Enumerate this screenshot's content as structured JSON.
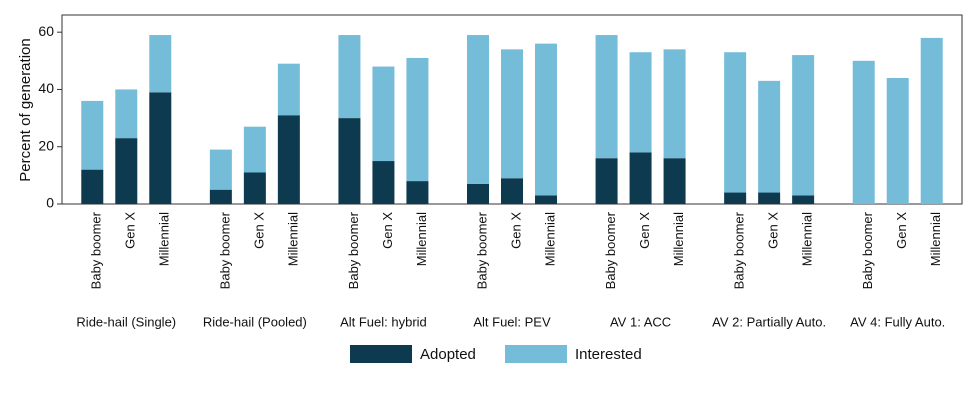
{
  "chart_data": {
    "type": "stacked_bar",
    "y_label": "Percent of generation",
    "groups": [
      "Ride-hail (Single)",
      "Ride-hail (Pooled)",
      "Alt Fuel: hybrid",
      "Alt Fuel: PEV",
      "AV 1: ACC",
      "AV 2: Partially Auto.",
      "AV 4: Fully Auto."
    ],
    "categories": [
      "Baby boomer",
      "Gen X",
      "Millennial",
      "Baby boomer",
      "Gen X",
      "Millennial",
      "Baby boomer",
      "Gen X",
      "Millennial",
      "Baby boomer",
      "Gen X",
      "Millennial",
      "Baby boomer",
      "Gen X",
      "Millennial",
      "Baby boomer",
      "Gen X",
      "Millennial",
      "Baby boomer",
      "Gen X",
      "Millennial"
    ],
    "series": [
      {
        "name": "Adopted",
        "color": "#0d3a4f",
        "values": [
          12,
          23,
          39,
          5,
          11,
          31,
          30,
          15,
          8,
          7,
          9,
          3,
          16,
          18,
          16,
          4,
          4,
          3,
          0,
          0,
          0
        ]
      },
      {
        "name": "Interested",
        "color": "#74bcd8",
        "values": [
          24,
          17,
          20,
          14,
          16,
          18,
          29,
          33,
          43,
          52,
          45,
          53,
          43,
          35,
          38,
          49,
          39,
          49,
          50,
          44,
          58
        ]
      }
    ],
    "ylim": [
      0,
      66
    ],
    "yticks": [
      0,
      20,
      40,
      60
    ],
    "grid": false,
    "legend": "bottom"
  }
}
